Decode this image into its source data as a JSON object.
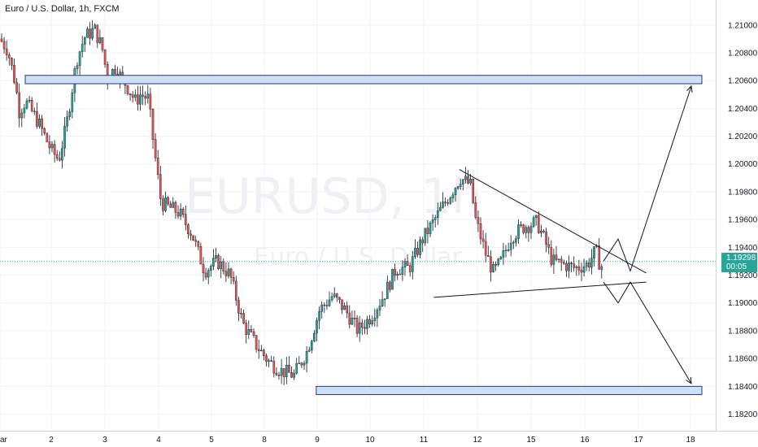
{
  "header": {
    "title": "Euro / U.S. Dollar, 1h, FXCM"
  },
  "watermark": {
    "symbol": "EURUSD, 1h",
    "description": "Euro / U.S. Dollar"
  },
  "price_tag": {
    "price": "1.19298",
    "countdown": "00:05"
  },
  "colors": {
    "up": "#26a69a",
    "down": "#ef5350",
    "wick": "#131722",
    "zone_fill": "#cfe0f5",
    "zone_stroke": "#1e3a8a",
    "last_price_line": "#26a69a"
  },
  "chart_data": {
    "type": "candlestick",
    "title": "Euro / U.S. Dollar, 1h, FXCM",
    "x_tick_labels": [
      "ar",
      "2",
      "3",
      "4",
      "5",
      "8",
      "9",
      "10",
      "11",
      "12",
      "15",
      "16",
      "17",
      "18"
    ],
    "y_tick_labels": [
      "1.21000",
      "1.20800",
      "1.20600",
      "1.20400",
      "1.20200",
      "1.20000",
      "1.19800",
      "1.19600",
      "1.19400",
      "1.19200",
      "1.19000",
      "1.18800",
      "1.18600",
      "1.18400",
      "1.18200"
    ],
    "ylim": [
      1.1808,
      1.2118
    ],
    "last_price": 1.19298,
    "path_closes": [
      [
        0.0,
        1.209
      ],
      [
        0.3,
        1.2082
      ],
      [
        0.6,
        1.2058
      ],
      [
        0.75,
        1.2038
      ],
      [
        1.0,
        1.2045
      ],
      [
        1.5,
        1.203
      ],
      [
        2.0,
        1.201
      ],
      [
        2.3,
        1.2003
      ],
      [
        2.6,
        1.2028
      ],
      [
        3.0,
        1.2075
      ],
      [
        3.3,
        1.2091
      ],
      [
        3.7,
        1.2097
      ],
      [
        4.0,
        1.2083
      ],
      [
        4.2,
        1.2062
      ],
      [
        4.5,
        1.2069
      ],
      [
        5.0,
        1.2055
      ],
      [
        5.3,
        1.2045
      ],
      [
        5.5,
        1.205
      ],
      [
        5.8,
        1.2047
      ],
      [
        6.0,
        1.2015
      ],
      [
        6.3,
        1.1972
      ],
      [
        7.0,
        1.1965
      ],
      [
        7.5,
        1.195
      ],
      [
        8.0,
        1.1923
      ],
      [
        8.5,
        1.193
      ],
      [
        9.0,
        1.192
      ],
      [
        9.5,
        1.1885
      ],
      [
        10.0,
        1.187
      ],
      [
        10.5,
        1.1858
      ],
      [
        11.0,
        1.1851
      ],
      [
        11.5,
        1.1848
      ],
      [
        12.0,
        1.1865
      ],
      [
        12.5,
        1.1895
      ],
      [
        13.0,
        1.1905
      ],
      [
        13.5,
        1.1895
      ],
      [
        14.0,
        1.188
      ],
      [
        14.5,
        1.189
      ],
      [
        15.0,
        1.1905
      ],
      [
        15.5,
        1.1925
      ],
      [
        16.0,
        1.1925
      ],
      [
        16.5,
        1.1945
      ],
      [
        17.0,
        1.196
      ],
      [
        17.5,
        1.1975
      ],
      [
        18.0,
        1.199
      ],
      [
        18.4,
        1.1985
      ],
      [
        18.6,
        1.196
      ],
      [
        19.0,
        1.1935
      ],
      [
        19.3,
        1.1922
      ],
      [
        19.6,
        1.193
      ],
      [
        20.0,
        1.1948
      ],
      [
        20.5,
        1.1955
      ],
      [
        21.0,
        1.1958
      ],
      [
        21.3,
        1.1945
      ],
      [
        21.6,
        1.193
      ],
      [
        22.0,
        1.1928
      ],
      [
        22.5,
        1.1925
      ],
      [
        23.0,
        1.1928
      ],
      [
        23.3,
        1.1938
      ],
      [
        23.5,
        1.1925
      ],
      [
        23.6,
        1.193
      ]
    ],
    "horizontal_zones": [
      {
        "price_from": 1.20595,
        "price_to": 1.2062,
        "x_from": -0.5,
        "x_to": 25.0
      },
      {
        "price_from": 1.18358,
        "price_to": 1.18382,
        "x_from": 11.9,
        "x_to": 25.0
      }
    ],
    "triangle_lines": [
      {
        "from": [
          17.9,
          1.1996
        ],
        "to": [
          24.0,
          1.19215
        ]
      },
      {
        "from": [
          16.9,
          1.1904
        ],
        "to": [
          24.0,
          1.1915
        ]
      }
    ],
    "projection_paths": [
      [
        [
          23.7,
          1.193
        ],
        [
          24.0,
          1.1946
        ],
        [
          24.3,
          1.1923
        ],
        [
          25.0,
          1.2056
        ]
      ],
      [
        [
          23.7,
          1.1915
        ],
        [
          24.0,
          1.19
        ],
        [
          24.3,
          1.1915
        ],
        [
          25.0,
          1.1842
        ]
      ]
    ]
  }
}
